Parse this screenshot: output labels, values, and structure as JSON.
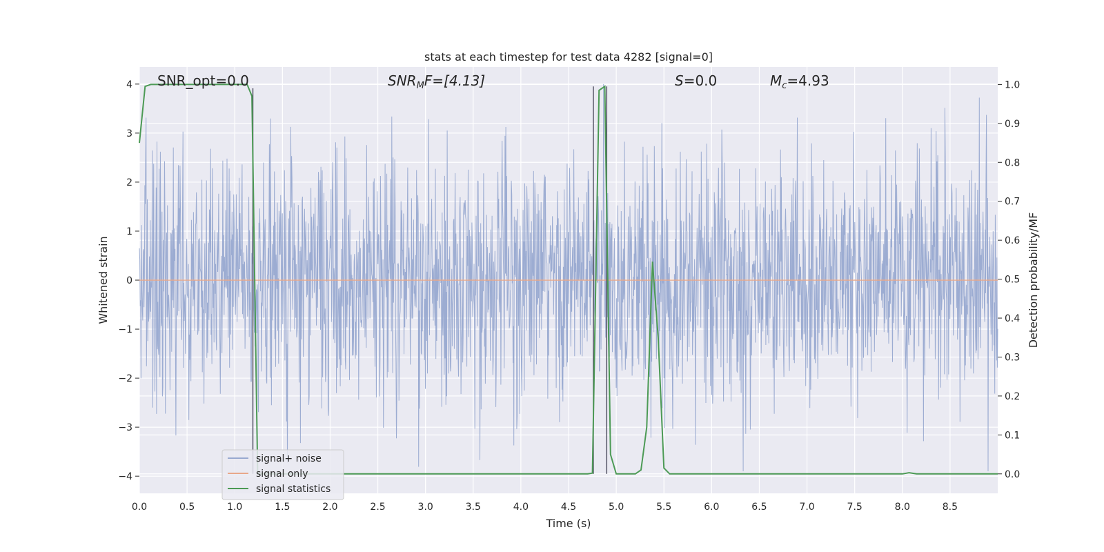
{
  "chart_data": {
    "type": "line",
    "title": "stats at each timestep for test data 4282 [signal=0]",
    "xlabel": "Time (s)",
    "ylabel_left": "Whitened strain",
    "ylabel_right": "Detection probability/MF",
    "xlim": [
      0,
      9.0
    ],
    "ylim_left": [
      -4.35,
      4.35
    ],
    "ylim_right": [
      -0.05,
      1.045
    ],
    "xticks": [
      "0.0",
      "0.5",
      "1.0",
      "1.5",
      "2.0",
      "2.5",
      "3.0",
      "3.5",
      "4.0",
      "4.5",
      "5.0",
      "5.5",
      "6.0",
      "6.5",
      "7.0",
      "7.5",
      "8.0",
      "8.5"
    ],
    "xtick_values": [
      0,
      0.5,
      1.0,
      1.5,
      2.0,
      2.5,
      3.0,
      3.5,
      4.0,
      4.5,
      5.0,
      5.5,
      6.0,
      6.5,
      7.0,
      7.5,
      8.0,
      8.5
    ],
    "yticks_left": [
      "−4",
      "−3",
      "−2",
      "−1",
      "0",
      "1",
      "2",
      "3",
      "4"
    ],
    "ytick_left_values": [
      -4,
      -3,
      -2,
      -1,
      0,
      1,
      2,
      3,
      4
    ],
    "yticks_right": [
      "0.0",
      "0.1",
      "0.2",
      "0.3",
      "0.4",
      "0.5",
      "0.6",
      "0.7",
      "0.8",
      "0.9",
      "1.0"
    ],
    "ytick_right_values": [
      0,
      0.1,
      0.2,
      0.3,
      0.4,
      0.5,
      0.6,
      0.7,
      0.8,
      0.9,
      1.0
    ],
    "grid": true,
    "legend_position": "lower-left",
    "annotations": {
      "snr_opt": "SNR_opt=0.0",
      "snr_mf_base": "SNR",
      "snr_mf_sub": "M",
      "snr_mf_rest": "F=[4.13]",
      "s_base": "S",
      "s_rest": "=0.0",
      "mc_base": "M",
      "mc_sub": "c",
      "mc_rest": "=4.93"
    },
    "series": [
      {
        "name": "signal+ noise",
        "color": "#98a9d0",
        "axis": "left",
        "kind": "noise",
        "amplitude_std": 1.0,
        "samples": 2048
      },
      {
        "name": "signal only",
        "color": "#e8a88a",
        "axis": "left",
        "x": [
          0,
          9.0
        ],
        "y": [
          0,
          0
        ]
      },
      {
        "name": "signal statistics",
        "color": "#4c9a55",
        "axis": "right",
        "x": [
          0.0,
          0.06,
          0.12,
          0.2,
          0.5,
          0.8,
          1.0,
          1.13,
          1.18,
          1.24,
          1.3,
          2.0,
          3.0,
          4.0,
          4.5,
          4.7,
          4.75,
          4.82,
          4.88,
          4.94,
          5.0,
          5.2,
          5.26,
          5.32,
          5.38,
          5.44,
          5.5,
          5.56,
          5.62,
          6.0,
          7.0,
          8.0,
          8.07,
          8.15,
          9.0
        ],
        "y": [
          0.85,
          0.995,
          1.0,
          1.0,
          1.0,
          1.0,
          1.0,
          1.0,
          0.97,
          0.0,
          0.0,
          0.0,
          0.0,
          0.0,
          0.0,
          0.0,
          0.002,
          0.985,
          0.995,
          0.05,
          0.0,
          0.0,
          0.01,
          0.12,
          0.545,
          0.35,
          0.015,
          0.0,
          0.0,
          0.0,
          0.0,
          0.0,
          0.003,
          0.0,
          0.0
        ]
      }
    ],
    "vertical_lines": [
      {
        "x": 1.19,
        "y_top": 0.99
      },
      {
        "x": 4.76,
        "y_top": 0.995
      },
      {
        "x": 4.9,
        "y_top": 0.995
      }
    ]
  }
}
